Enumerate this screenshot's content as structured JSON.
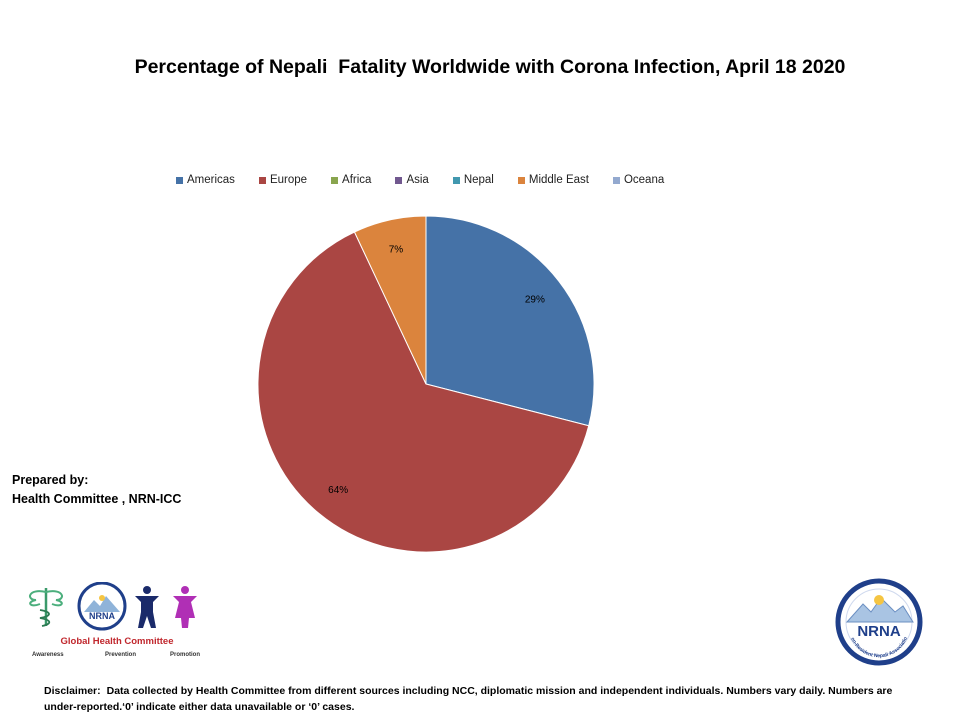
{
  "title": "Percentage of Nepali  Fatality Worldwide with Corona Infection, April 18 2020",
  "legend": [
    {
      "name": "Americas",
      "color": "#4572a7"
    },
    {
      "name": "Europe",
      "color": "#aa4643"
    },
    {
      "name": "Africa",
      "color": "#89a54e"
    },
    {
      "name": "Asia",
      "color": "#71588f"
    },
    {
      "name": "Nepal",
      "color": "#4198af"
    },
    {
      "name": "Middle East",
      "color": "#db843d"
    },
    {
      "name": "Oceana",
      "color": "#93a9cf"
    }
  ],
  "chart_data": {
    "type": "pie",
    "title": "Percentage of Nepali  Fatality Worldwide with Corona Infection, April 18 2020",
    "categories": [
      "Americas",
      "Europe",
      "Africa",
      "Asia",
      "Nepal",
      "Middle East",
      "Oceana"
    ],
    "values": [
      29,
      64,
      0,
      0,
      0,
      7,
      0
    ],
    "data_labels": [
      "29%",
      "64%",
      "",
      "",
      "",
      "7%",
      ""
    ],
    "colors": [
      "#4572a7",
      "#aa4643",
      "#89a54e",
      "#71588f",
      "#4198af",
      "#db843d",
      "#93a9cf"
    ],
    "legend_position": "top"
  },
  "prepared_by": {
    "line1": "Prepared by:",
    "line2": "Health Committee , NRN-ICC"
  },
  "logos": {
    "left_caption": "Global Health Committee",
    "left_tagline_1": "Awareness",
    "left_tagline_2": "Prevention",
    "left_tagline_3": "Promotion",
    "nrna_text": "NRNA",
    "nrna_ring_text": "Non-Resident Nepali Association"
  },
  "disclaimer": {
    "label": "Disclaimer:",
    "text": "Data collected by Health Committee from different sources including NCC, diplomatic mission and independent individuals.  Numbers vary daily.  Numbers are under-reported.‘0’ indicate either data unavailable  or ‘0’ cases."
  }
}
